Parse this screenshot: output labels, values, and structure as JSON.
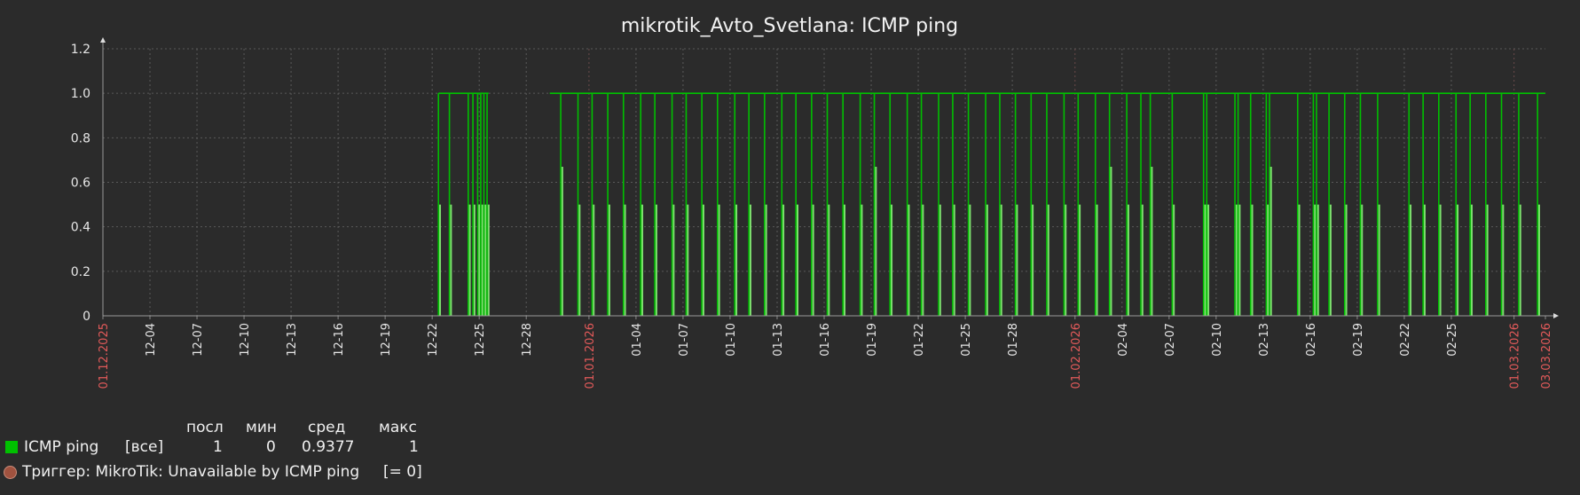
{
  "chart_data": {
    "type": "line",
    "title": "mikrotik_Avto_Svetlana: ICMP ping",
    "ylim": [
      0,
      1.2
    ],
    "y_ticks": [
      "0",
      "0.2",
      "0.4",
      "0.6",
      "0.8",
      "1.0",
      "1.2"
    ],
    "x_range_days": [
      0,
      92
    ],
    "x_ticks": [
      {
        "label": "01.12.2025",
        "day": 0,
        "major": true
      },
      {
        "label": "12-04",
        "day": 3
      },
      {
        "label": "12-07",
        "day": 6
      },
      {
        "label": "12-10",
        "day": 9
      },
      {
        "label": "12-13",
        "day": 12
      },
      {
        "label": "12-16",
        "day": 15
      },
      {
        "label": "12-19",
        "day": 18
      },
      {
        "label": "12-22",
        "day": 21
      },
      {
        "label": "12-25",
        "day": 24
      },
      {
        "label": "12-28",
        "day": 27
      },
      {
        "label": "01.01.2026",
        "day": 31,
        "major": true
      },
      {
        "label": "01-04",
        "day": 34
      },
      {
        "label": "01-07",
        "day": 37
      },
      {
        "label": "01-10",
        "day": 40
      },
      {
        "label": "01-13",
        "day": 43
      },
      {
        "label": "01-16",
        "day": 46
      },
      {
        "label": "01-19",
        "day": 49
      },
      {
        "label": "01-22",
        "day": 52
      },
      {
        "label": "01-25",
        "day": 55
      },
      {
        "label": "01-28",
        "day": 58
      },
      {
        "label": "01.02.2026",
        "day": 62,
        "major": true
      },
      {
        "label": "02-04",
        "day": 65
      },
      {
        "label": "02-07",
        "day": 68
      },
      {
        "label": "02-10",
        "day": 71
      },
      {
        "label": "02-13",
        "day": 74
      },
      {
        "label": "02-16",
        "day": 77
      },
      {
        "label": "02-19",
        "day": 80
      },
      {
        "label": "02-22",
        "day": 83
      },
      {
        "label": "02-25",
        "day": 86
      },
      {
        "label": "01.03.2026",
        "day": 90,
        "major": true
      },
      {
        "label": "03.03.2026",
        "day": 92,
        "major": true
      }
    ],
    "series": [
      {
        "name": "ICMP ping",
        "color": "#00c000",
        "baseline_segments": [
          [
            21.4,
            24.6
          ],
          [
            28.5,
            92
          ]
        ],
        "drop_days": [
          21.4,
          22.1,
          23.3,
          23.6,
          23.9,
          24.1,
          24.3,
          24.5,
          29.2,
          30.3,
          31.2,
          32.2,
          33.2,
          34.3,
          35.2,
          36.3,
          37.2,
          38.2,
          39.2,
          40.3,
          41.2,
          42.2,
          43.3,
          44.2,
          45.2,
          46.2,
          47.2,
          48.3,
          49.2,
          50.2,
          51.3,
          52.2,
          53.3,
          54.2,
          55.2,
          56.3,
          57.2,
          58.2,
          59.2,
          60.2,
          61.3,
          62.2,
          63.3,
          64.2,
          65.3,
          66.2,
          66.8,
          68.2,
          70.2,
          70.4,
          72.2,
          72.4,
          73.2,
          74.2,
          74.4,
          76.2,
          77.2,
          77.4,
          78.2,
          79.2,
          80.2,
          81.3,
          83.3,
          84.2,
          85.2,
          86.3,
          87.2,
          88.2,
          89.2,
          90.3,
          91.5
        ],
        "drop_levels": [
          0.5,
          0.5,
          0.5,
          0.5,
          0.5,
          0.5,
          0.5,
          0.5,
          0.67,
          0.5,
          0.5,
          0.5,
          0.5,
          0.5,
          0.5,
          0.5,
          0.5,
          0.5,
          0.5,
          0.5,
          0.5,
          0.5,
          0.5,
          0.5,
          0.5,
          0.5,
          0.5,
          0.5,
          0.67,
          0.5,
          0.5,
          0.5,
          0.5,
          0.5,
          0.5,
          0.5,
          0.5,
          0.5,
          0.5,
          0.5,
          0.5,
          0.5,
          0.5,
          0.67,
          0.5,
          0.5,
          0.67,
          0.5,
          0.5,
          0.5,
          0.5,
          0.5,
          0.5,
          0.5,
          0.67,
          0.5,
          0.5,
          0.5,
          0.5,
          0.5,
          0.5,
          0.5,
          0.5,
          0.5,
          0.5,
          0.5,
          0.5,
          0.5,
          0.5,
          0.5,
          0.5
        ]
      }
    ]
  },
  "legend": {
    "headers": {
      "last": "посл",
      "min": "мин",
      "avg": "сред",
      "max": "макс"
    },
    "series_label": "ICMP ping",
    "series_func": "[все]",
    "last": "1",
    "min": "0",
    "avg": "0.9377",
    "max": "1",
    "trigger_label": "Триггер: MikroTik: Unavailable by ICMP ping",
    "trigger_cond": "[= 0]",
    "trigger_color": "#a0523f"
  }
}
